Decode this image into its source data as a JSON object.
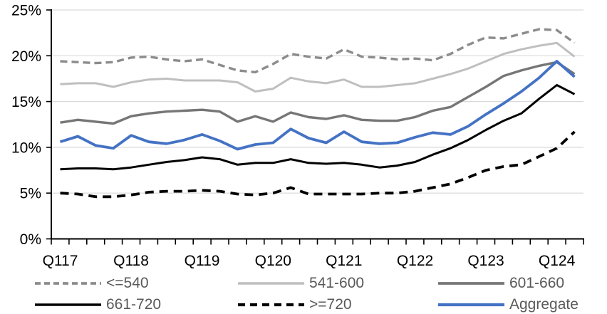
{
  "chart_data": {
    "type": "line",
    "title": "",
    "categories": [
      "Q117",
      "Q217",
      "Q317",
      "Q417",
      "Q118",
      "Q218",
      "Q318",
      "Q418",
      "Q119",
      "Q219",
      "Q319",
      "Q419",
      "Q120",
      "Q220",
      "Q320",
      "Q420",
      "Q121",
      "Q221",
      "Q321",
      "Q421",
      "Q122",
      "Q222",
      "Q322",
      "Q422",
      "Q123",
      "Q223",
      "Q323",
      "Q423",
      "Q124",
      "Q224"
    ],
    "x_axis_labels": [
      "Q117",
      "Q118",
      "Q119",
      "Q120",
      "Q121",
      "Q122",
      "Q123",
      "Q124"
    ],
    "y_axis": {
      "min": 0,
      "max": 25,
      "tick_step": 5,
      "tick_labels": [
        "0%",
        "5%",
        "10%",
        "15%",
        "20%",
        "25%"
      ],
      "unit": "%"
    },
    "grid": true,
    "legend_position": "bottom",
    "series": [
      {
        "name": "<=540",
        "color": "#8C8C8C",
        "dash": "dashed",
        "dasharray": "10 6",
        "width": 3.4,
        "values": [
          19.4,
          19.3,
          19.2,
          19.3,
          19.8,
          19.9,
          19.6,
          19.4,
          19.6,
          19.0,
          18.4,
          18.2,
          19.1,
          20.2,
          19.9,
          19.7,
          20.7,
          19.9,
          19.8,
          19.6,
          19.7,
          19.5,
          20.2,
          21.2,
          22.0,
          21.9,
          22.4,
          22.9,
          22.8,
          21.4
        ]
      },
      {
        "name": "541-600",
        "color": "#BFBFBF",
        "dash": "solid",
        "dasharray": "",
        "width": 3,
        "values": [
          16.9,
          17.0,
          17.0,
          16.6,
          17.1,
          17.4,
          17.5,
          17.3,
          17.3,
          17.3,
          17.1,
          16.1,
          16.4,
          17.6,
          17.2,
          17.0,
          17.4,
          16.6,
          16.6,
          16.8,
          17.0,
          17.5,
          18.0,
          18.6,
          19.4,
          20.2,
          20.7,
          21.1,
          21.4,
          19.9
        ]
      },
      {
        "name": "601-660",
        "color": "#767676",
        "dash": "solid",
        "dasharray": "",
        "width": 3.4,
        "values": [
          12.7,
          13.0,
          12.8,
          12.6,
          13.4,
          13.7,
          13.9,
          14.0,
          14.1,
          13.9,
          12.8,
          13.4,
          12.8,
          13.8,
          13.3,
          13.1,
          13.5,
          13.0,
          12.9,
          12.9,
          13.3,
          14.0,
          14.4,
          15.5,
          16.6,
          17.8,
          18.4,
          18.9,
          19.3,
          18.0
        ]
      },
      {
        "name": "661-720",
        "color": "#000000",
        "dash": "solid",
        "dasharray": "",
        "width": 3,
        "values": [
          7.6,
          7.7,
          7.7,
          7.6,
          7.8,
          8.1,
          8.4,
          8.6,
          8.9,
          8.7,
          8.1,
          8.3,
          8.3,
          8.7,
          8.3,
          8.2,
          8.3,
          8.1,
          7.8,
          8.0,
          8.4,
          9.2,
          9.9,
          10.8,
          11.9,
          12.9,
          13.7,
          15.3,
          16.8,
          15.8
        ]
      },
      {
        "name": ">=720",
        "color": "#000000",
        "dash": "dashed",
        "dasharray": "12 8",
        "width": 3.8,
        "values": [
          5.0,
          4.9,
          4.6,
          4.6,
          4.8,
          5.1,
          5.2,
          5.2,
          5.3,
          5.2,
          4.9,
          4.8,
          5.0,
          5.6,
          4.9,
          4.9,
          4.9,
          4.9,
          5.0,
          5.0,
          5.2,
          5.6,
          6.0,
          6.7,
          7.5,
          7.9,
          8.1,
          9.0,
          9.9,
          11.7
        ]
      },
      {
        "name": "Aggregate",
        "color": "#4472C4",
        "dash": "solid",
        "dasharray": "",
        "width": 3.8,
        "values": [
          10.6,
          11.2,
          10.2,
          9.9,
          11.3,
          10.6,
          10.4,
          10.8,
          11.4,
          10.7,
          9.8,
          10.3,
          10.5,
          12.0,
          11.0,
          10.5,
          11.7,
          10.6,
          10.4,
          10.5,
          11.1,
          11.6,
          11.4,
          12.3,
          13.6,
          14.8,
          16.1,
          17.6,
          19.4,
          17.7
        ]
      }
    ]
  },
  "colors": {
    "grid": "#D9D9D9",
    "axis": "#000000",
    "legend_text": "#595959",
    "background": "#FFFFFF"
  }
}
